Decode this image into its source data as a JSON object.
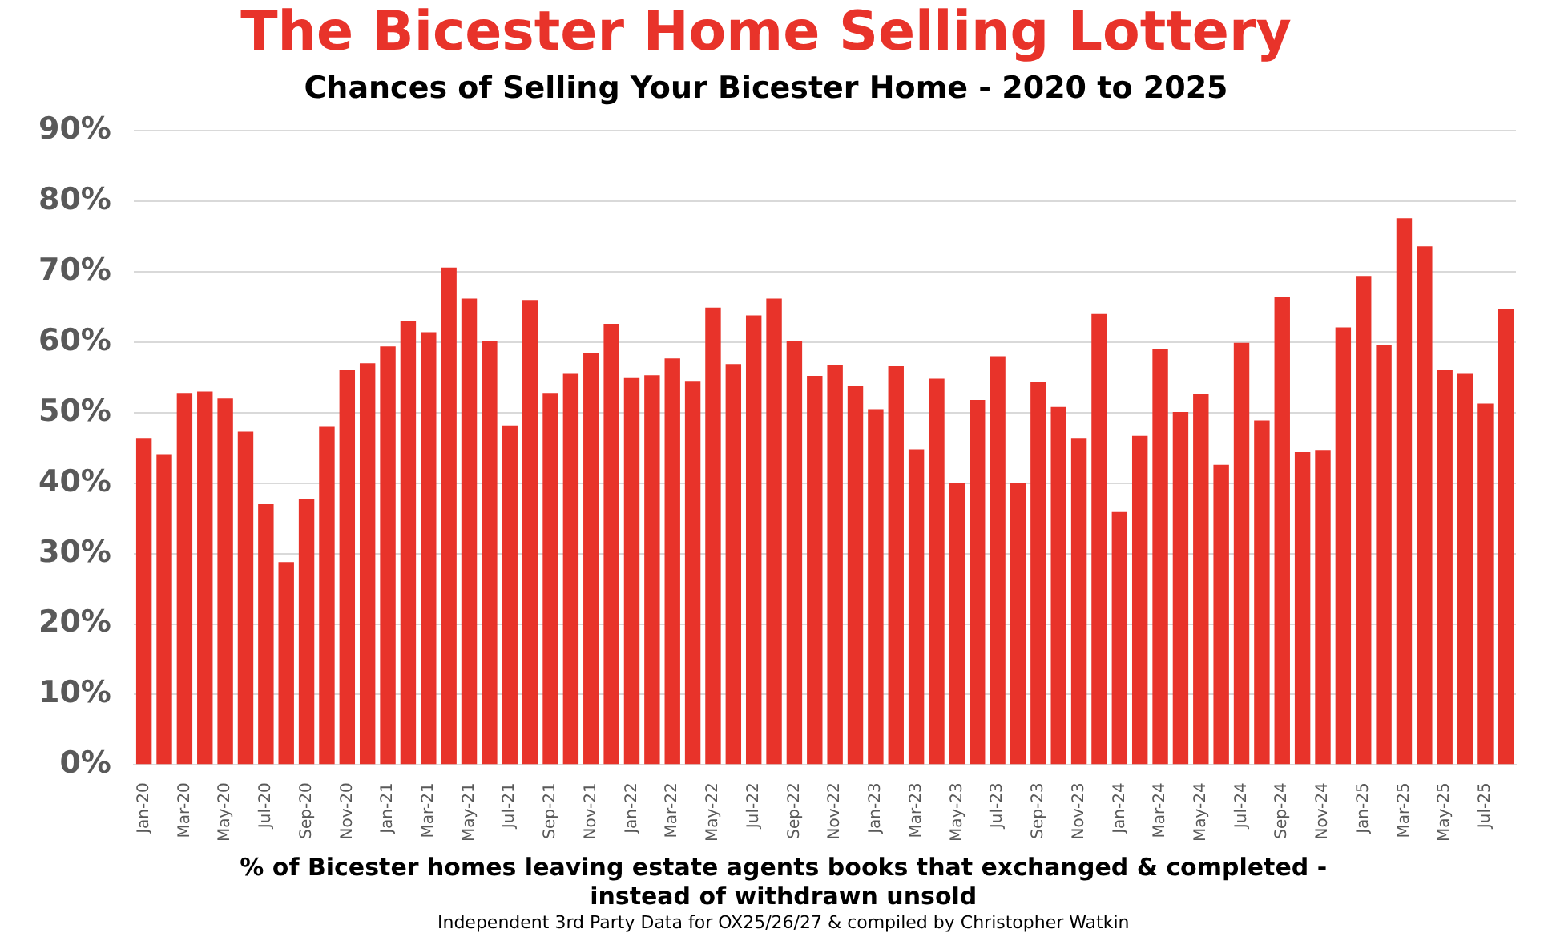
{
  "chart_data": {
    "type": "bar",
    "title": "The Bicester Home Selling Lottery",
    "subtitle": "Chances of Selling Your Bicester Home - 2020 to 2025",
    "categories": [
      "Jan-20",
      null,
      "Mar-20",
      null,
      "May-20",
      null,
      "Jul-20",
      null,
      "Sep-20",
      null,
      "Nov-20",
      null,
      "Jan-21",
      null,
      "Mar-21",
      null,
      "May-21",
      null,
      "Jul-21",
      null,
      "Sep-21",
      null,
      "Nov-21",
      null,
      "Jan-22",
      null,
      "Mar-22",
      null,
      "May-22",
      null,
      "Jul-22",
      null,
      "Sep-22",
      null,
      "Nov-22",
      null,
      "Jan-23",
      null,
      "Mar-23",
      null,
      "May-23",
      null,
      "Jul-23",
      null,
      "Sep-23",
      null,
      "Nov-23",
      null,
      "Jan-24",
      null,
      "Mar-24",
      null,
      "May-24",
      null,
      "Jul-24",
      null,
      "Sep-24",
      null,
      "Nov-24",
      null,
      "Jan-25",
      null,
      "Mar-25",
      null,
      "May-25",
      null,
      "Jul-25",
      null
    ],
    "values": [
      46.3,
      44,
      52.8,
      53,
      52,
      47.3,
      37,
      28.8,
      37.8,
      48,
      56,
      57,
      59.4,
      63,
      61.4,
      70.6,
      66.2,
      60.2,
      48.2,
      66,
      52.8,
      55.6,
      58.4,
      62.6,
      55,
      55.3,
      57.7,
      54.5,
      64.9,
      56.9,
      63.8,
      66.2,
      60.2,
      55.2,
      56.8,
      53.8,
      50.5,
      56.6,
      44.8,
      54.8,
      40,
      51.8,
      58,
      40,
      54.4,
      50.8,
      46.3,
      64,
      35.9,
      46.7,
      59,
      50.1,
      52.6,
      42.6,
      59.9,
      48.9,
      66.4,
      44.4,
      44.6,
      62.1,
      69.4,
      59.6,
      77.6,
      73.6,
      56,
      55.6,
      51.3,
      64.7
    ],
    "color": "#e8332a",
    "ylim": [
      0,
      90
    ],
    "yticks": [
      {
        "value": 0,
        "label": "0%"
      },
      {
        "value": 10,
        "label": "10%"
      },
      {
        "value": 20,
        "label": "20%"
      },
      {
        "value": 30,
        "label": "30%"
      },
      {
        "value": 40,
        "label": "40%"
      },
      {
        "value": 50,
        "label": "50%"
      },
      {
        "value": 60,
        "label": "60%"
      },
      {
        "value": 70,
        "label": "70%"
      },
      {
        "value": 80,
        "label": "80%"
      },
      {
        "value": 90,
        "label": "90%"
      }
    ],
    "grid": "y",
    "legend": false,
    "annotations": [
      "% of Bicester homes leaving estate agents books that exchanged & completed - instead of withdrawn unsold",
      "Independent 3rd Party Data for OX25/26/27 & compiled by Christopher Watkin"
    ]
  }
}
